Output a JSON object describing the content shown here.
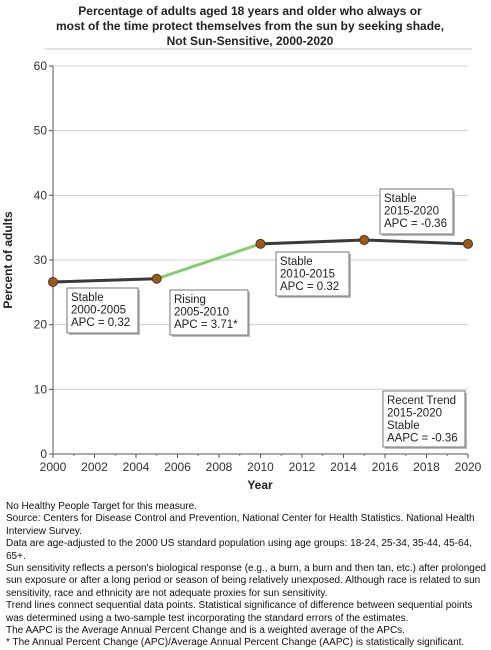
{
  "chart_data": {
    "type": "line",
    "title": [
      "Percentage of adults aged 18 years and older who always or",
      "most of the time protect themselves from the sun by seeking shade,",
      "Not Sun-Sensitive,  2000-2020"
    ],
    "xlabel": "Year",
    "ylabel": "Percent of adults",
    "xlim": [
      2000,
      2020
    ],
    "ylim": [
      0,
      60
    ],
    "xticks": [
      "2000",
      "2002",
      "2004",
      "2006",
      "2008",
      "2010",
      "2012",
      "2014",
      "2016",
      "2018",
      "2020"
    ],
    "yticks": [
      "0",
      "10",
      "20",
      "30",
      "40",
      "50",
      "60"
    ],
    "grid": "horizontal",
    "points": {
      "x": [
        2000,
        2005,
        2010,
        2015,
        2020
      ],
      "y": [
        26.6,
        27.1,
        32.5,
        33.1,
        32.5
      ]
    },
    "segments": [
      {
        "x": [
          2000,
          2005
        ],
        "color": "#3a3a3a"
      },
      {
        "x": [
          2005,
          2010
        ],
        "color": "#7fcf6e"
      },
      {
        "x": [
          2010,
          2020
        ],
        "color": "#3a3a3a"
      }
    ],
    "marker_color": "#9a5a1c",
    "annotations": [
      {
        "lines": [
          "Stable",
          "2000-2005",
          "APC =  0.32"
        ]
      },
      {
        "lines": [
          "Rising",
          "2005-2010",
          "APC =  3.71*"
        ]
      },
      {
        "lines": [
          "Stable",
          "2010-2015",
          "APC =  0.32"
        ]
      },
      {
        "lines": [
          "Stable",
          "2015-2020",
          "APC = -0.36"
        ]
      },
      {
        "lines": [
          "Recent Trend",
          "2015-2020",
          "Stable",
          "AAPC = -0.36"
        ]
      }
    ]
  },
  "notes": [
    "No Healthy People Target for this measure.",
    "Source: Centers for Disease Control and Prevention, National Center for Health Statistics. National Health Interview Survey.",
    "Data are age-adjusted to the 2000 US standard population using age groups: 18-24, 25-34, 35-44, 45-64, 65+.",
    "Sun sensitivity reflects a person's biological response (e.g., a burn, a burn and then tan, etc.) after prolonged sun exposure or after a long period or season of being relatively unexposed. Although race is related to sun sensitivity, race and ethnicity are not adequate proxies for sun sensitivity.",
    "Trend lines connect sequential data points. Statistical significance of difference between sequential points was determined using a two-sample test incorporating the standard errors of the estimates.",
    "The AAPC is the Average Annual Percent Change and is a weighted average of the APCs.",
    "* The Annual Percent Change (APC)/Average Annual Percent Change (AAPC) is statistically significant."
  ]
}
